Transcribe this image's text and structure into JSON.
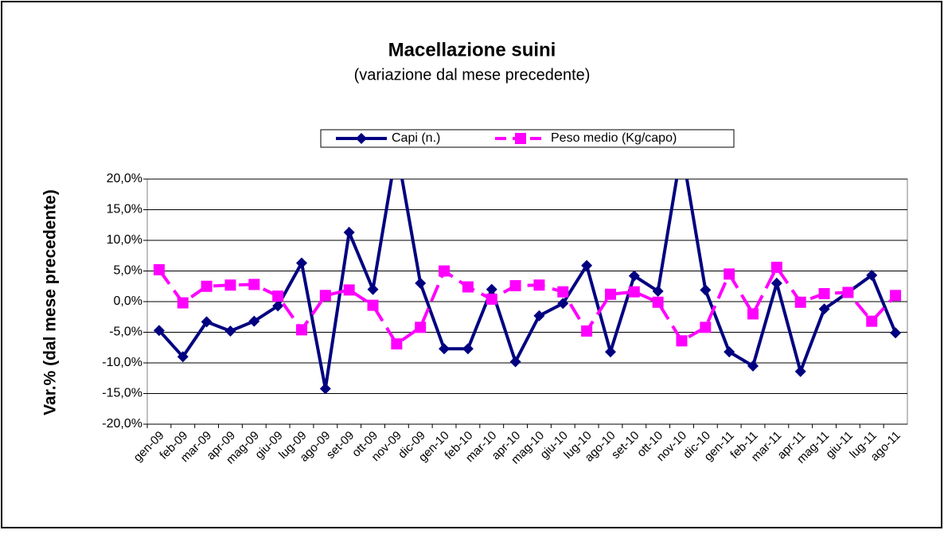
{
  "chart_data": {
    "type": "line",
    "title": "Macellazione suini",
    "subtitle": "(variazione dal mese precedente)",
    "y_label": "Var.% (dal mese precedente)",
    "categories": [
      "gen-09",
      "feb-09",
      "mar-09",
      "apr-09",
      "mag-09",
      "giu-09",
      "lug-09",
      "ago-09",
      "set-09",
      "ott-09",
      "nov-09",
      "dic-09",
      "gen-10",
      "feb-10",
      "mar-10",
      "apr-10",
      "mag-10",
      "giu-10",
      "lug-10",
      "ago-10",
      "set-10",
      "ott-10",
      "nov-10",
      "dic-10",
      "gen-11",
      "feb-11",
      "mar-11",
      "apr-11",
      "mag-11",
      "giu-11",
      "lug-11",
      "ago-11"
    ],
    "series": [
      {
        "name": "Capi (n.)",
        "color": "#000080",
        "marker": "diamond",
        "dashed": false,
        "values": [
          -4.7,
          -9.0,
          -3.3,
          -4.8,
          -3.2,
          -0.7,
          6.3,
          -14.2,
          11.3,
          2.0,
          25,
          3.0,
          -7.7,
          -7.7,
          2.0,
          -9.8,
          -2.3,
          -0.3,
          5.9,
          -8.2,
          4.2,
          1.7,
          25,
          1.9,
          -8.2,
          -10.5,
          3.0,
          -11.4,
          -1.2,
          1.5,
          4.3,
          -5.1
        ]
      },
      {
        "name": "Peso medio (Kg/capo)",
        "color": "#ff00ff",
        "marker": "square",
        "dashed": true,
        "values": [
          5.2,
          -0.2,
          2.5,
          2.7,
          2.8,
          0.9,
          -4.6,
          1.0,
          1.9,
          -0.6,
          -6.9,
          -4.2,
          5.0,
          2.4,
          0.4,
          2.6,
          2.7,
          1.6,
          -4.8,
          1.2,
          1.6,
          -0.1,
          -6.4,
          -4.2,
          4.5,
          -2.0,
          5.6,
          -0.1,
          1.3,
          1.5,
          -3.2,
          1.0
        ]
      }
    ],
    "ylim": [
      -20,
      20
    ],
    "yticks": [
      {
        "value": -20,
        "label": "-20,0%"
      },
      {
        "value": -15,
        "label": "-15,0%"
      },
      {
        "value": -10,
        "label": "-10,0%"
      },
      {
        "value": -5,
        "label": "-5,0%"
      },
      {
        "value": 0,
        "label": "0,0%"
      },
      {
        "value": 5,
        "label": "5,0%"
      },
      {
        "value": 10,
        "label": "10,0%"
      },
      {
        "value": 15,
        "label": "15,0%"
      },
      {
        "value": 20,
        "label": "20,0%"
      }
    ],
    "grid": true,
    "legend": "top"
  }
}
